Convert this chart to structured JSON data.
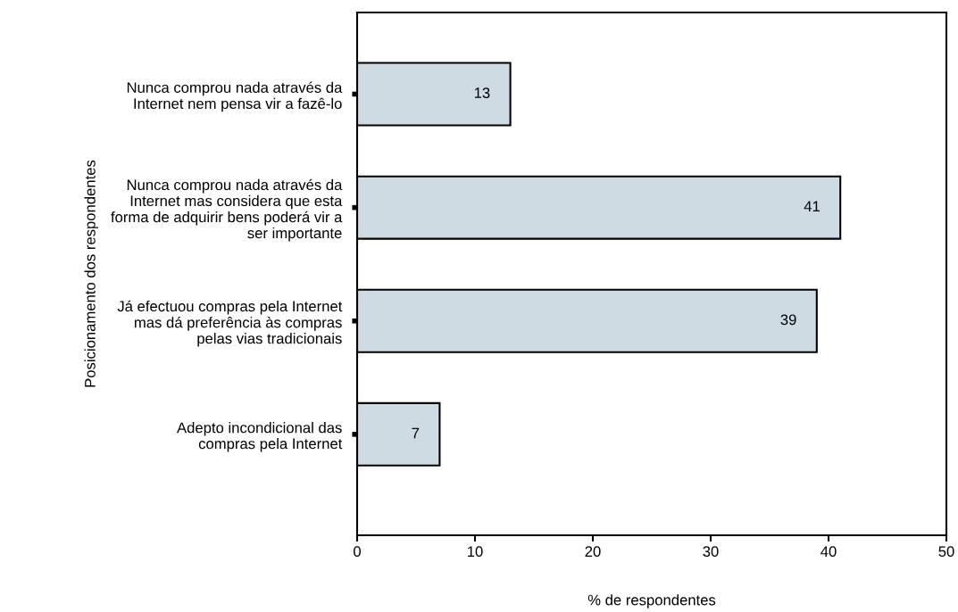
{
  "chart_data": {
    "type": "bar",
    "orientation": "horizontal",
    "categories": [
      "Nunca comprou nada através da\nInternet nem pensa vir a fazê-lo",
      "Nunca comprou nada através da\nInternet mas considera que esta\nforma de adquirir bens poderá vir a\nser importante",
      "Já efectuou compras pela Internet\nmas dá preferência às compras\npelas vias tradicionais",
      "Adepto incondicional das\ncompras pela Internet"
    ],
    "values": [
      13,
      41,
      39,
      7
    ],
    "color": "#cfdbe2",
    "data_labels": true,
    "xlim": [
      0,
      50
    ],
    "xticks": [
      0,
      10,
      20,
      30,
      40,
      50
    ],
    "xlabel": "% de respondentes",
    "ylabel": "Posicionamento dos respondentes",
    "grid": false,
    "legend": false
  }
}
